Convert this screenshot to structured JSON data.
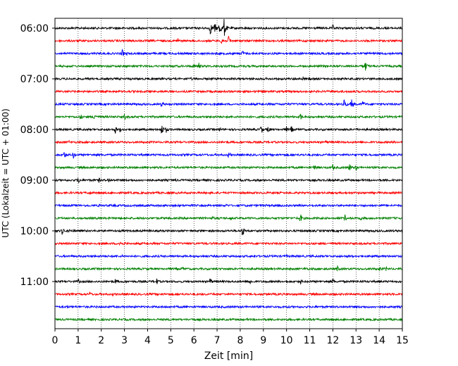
{
  "chart_data": {
    "type": "line",
    "subtype": "helicorder",
    "xlabel": "Zeit  [min]",
    "ylabel": "UTC (Lokalzeit = UTC + 01:00)",
    "xlim": [
      0,
      15
    ],
    "x_ticks": [
      "0",
      "1",
      "2",
      "3",
      "4",
      "5",
      "6",
      "7",
      "8",
      "9",
      "10",
      "11",
      "12",
      "13",
      "14",
      "15"
    ],
    "y_tick_labels": [
      "06:00",
      "07:00",
      "08:00",
      "09:00",
      "10:00",
      "11:00"
    ],
    "grid": "vertical dotted",
    "trace_colors": [
      "#000000",
      "#ff0000",
      "#0000ff",
      "#008000"
    ],
    "trace_count": 24,
    "trace_start_times": [
      "06:00",
      "06:15",
      "06:30",
      "06:45",
      "07:00",
      "07:15",
      "07:30",
      "07:45",
      "08:00",
      "08:15",
      "08:30",
      "08:45",
      "09:00",
      "09:15",
      "09:30",
      "09:45",
      "10:00",
      "10:15",
      "10:30",
      "10:45",
      "11:00",
      "11:15",
      "11:30",
      "11:45"
    ],
    "events": [
      [
        [
          6.7,
          10
        ],
        [
          6.9,
          8
        ],
        [
          7.1,
          12
        ],
        [
          7.3,
          14
        ],
        [
          12.0,
          5
        ]
      ],
      [
        [
          5.3,
          5
        ],
        [
          7.2,
          9
        ],
        [
          7.5,
          7
        ]
      ],
      [
        [
          2.9,
          6
        ],
        [
          3.1,
          3
        ],
        [
          8.1,
          5
        ]
      ],
      [
        [
          6.0,
          4
        ],
        [
          6.2,
          6
        ],
        [
          13.4,
          8
        ],
        [
          13.3,
          4
        ]
      ],
      [
        [
          5.7,
          3
        ],
        [
          5.9,
          3
        ],
        [
          10.7,
          3
        ],
        [
          11.0,
          3
        ]
      ],
      [
        [
          1.2,
          2
        ],
        [
          4.6,
          2
        ],
        [
          12.8,
          2
        ]
      ],
      [
        [
          4.6,
          5
        ],
        [
          12.5,
          9
        ],
        [
          12.8,
          8
        ],
        [
          13.3,
          6
        ]
      ],
      [
        [
          1.1,
          5
        ],
        [
          1.7,
          7
        ],
        [
          3.0,
          5
        ],
        [
          10.6,
          5
        ]
      ],
      [
        [
          2.6,
          6
        ],
        [
          2.8,
          4
        ],
        [
          4.6,
          9
        ],
        [
          4.8,
          5
        ],
        [
          7.1,
          4
        ],
        [
          8.9,
          7
        ],
        [
          9.2,
          6
        ],
        [
          10.0,
          5
        ],
        [
          10.2,
          6
        ]
      ],
      [
        [
          0.6,
          3
        ],
        [
          11.7,
          3
        ]
      ],
      [
        [
          0.4,
          6
        ],
        [
          0.8,
          6
        ],
        [
          7.5,
          5
        ]
      ],
      [
        [
          11.2,
          6
        ],
        [
          12.0,
          5
        ],
        [
          12.7,
          7
        ],
        [
          13.0,
          5
        ]
      ],
      [
        [
          1.0,
          6
        ],
        [
          1.9,
          4
        ],
        [
          2.3,
          5
        ],
        [
          5.2,
          3
        ]
      ],
      [
        [
          1.5,
          4
        ],
        [
          2.0,
          3
        ]
      ],
      [
        [
          1.9,
          3
        ],
        [
          7.4,
          3
        ]
      ],
      [
        [
          6.8,
          4
        ],
        [
          7.6,
          3
        ],
        [
          10.6,
          7
        ],
        [
          12.5,
          6
        ],
        [
          13.2,
          4
        ]
      ],
      [
        [
          0.3,
          6
        ],
        [
          0.6,
          4
        ],
        [
          8.1,
          9
        ]
      ],
      [
        [
          2.8,
          5
        ],
        [
          3.0,
          3
        ],
        [
          6.5,
          2
        ]
      ],
      [
        [
          2.9,
          2
        ],
        [
          8.6,
          3
        ],
        [
          10.0,
          3
        ]
      ],
      [
        [
          5.5,
          4
        ],
        [
          10.8,
          4
        ],
        [
          12.2,
          5
        ],
        [
          14.0,
          5
        ],
        [
          14.3,
          4
        ]
      ],
      [
        [
          1.0,
          4
        ],
        [
          2.6,
          5
        ],
        [
          4.4,
          5
        ],
        [
          6.7,
          6
        ],
        [
          8.4,
          6
        ],
        [
          10.6,
          4
        ],
        [
          12.0,
          5
        ],
        [
          13.3,
          2
        ]
      ],
      [
        [
          1.5,
          4
        ],
        [
          2.5,
          3
        ]
      ],
      [
        [
          0.5,
          3
        ],
        [
          3.0,
          2
        ]
      ],
      [
        [
          5.9,
          3
        ]
      ]
    ]
  }
}
